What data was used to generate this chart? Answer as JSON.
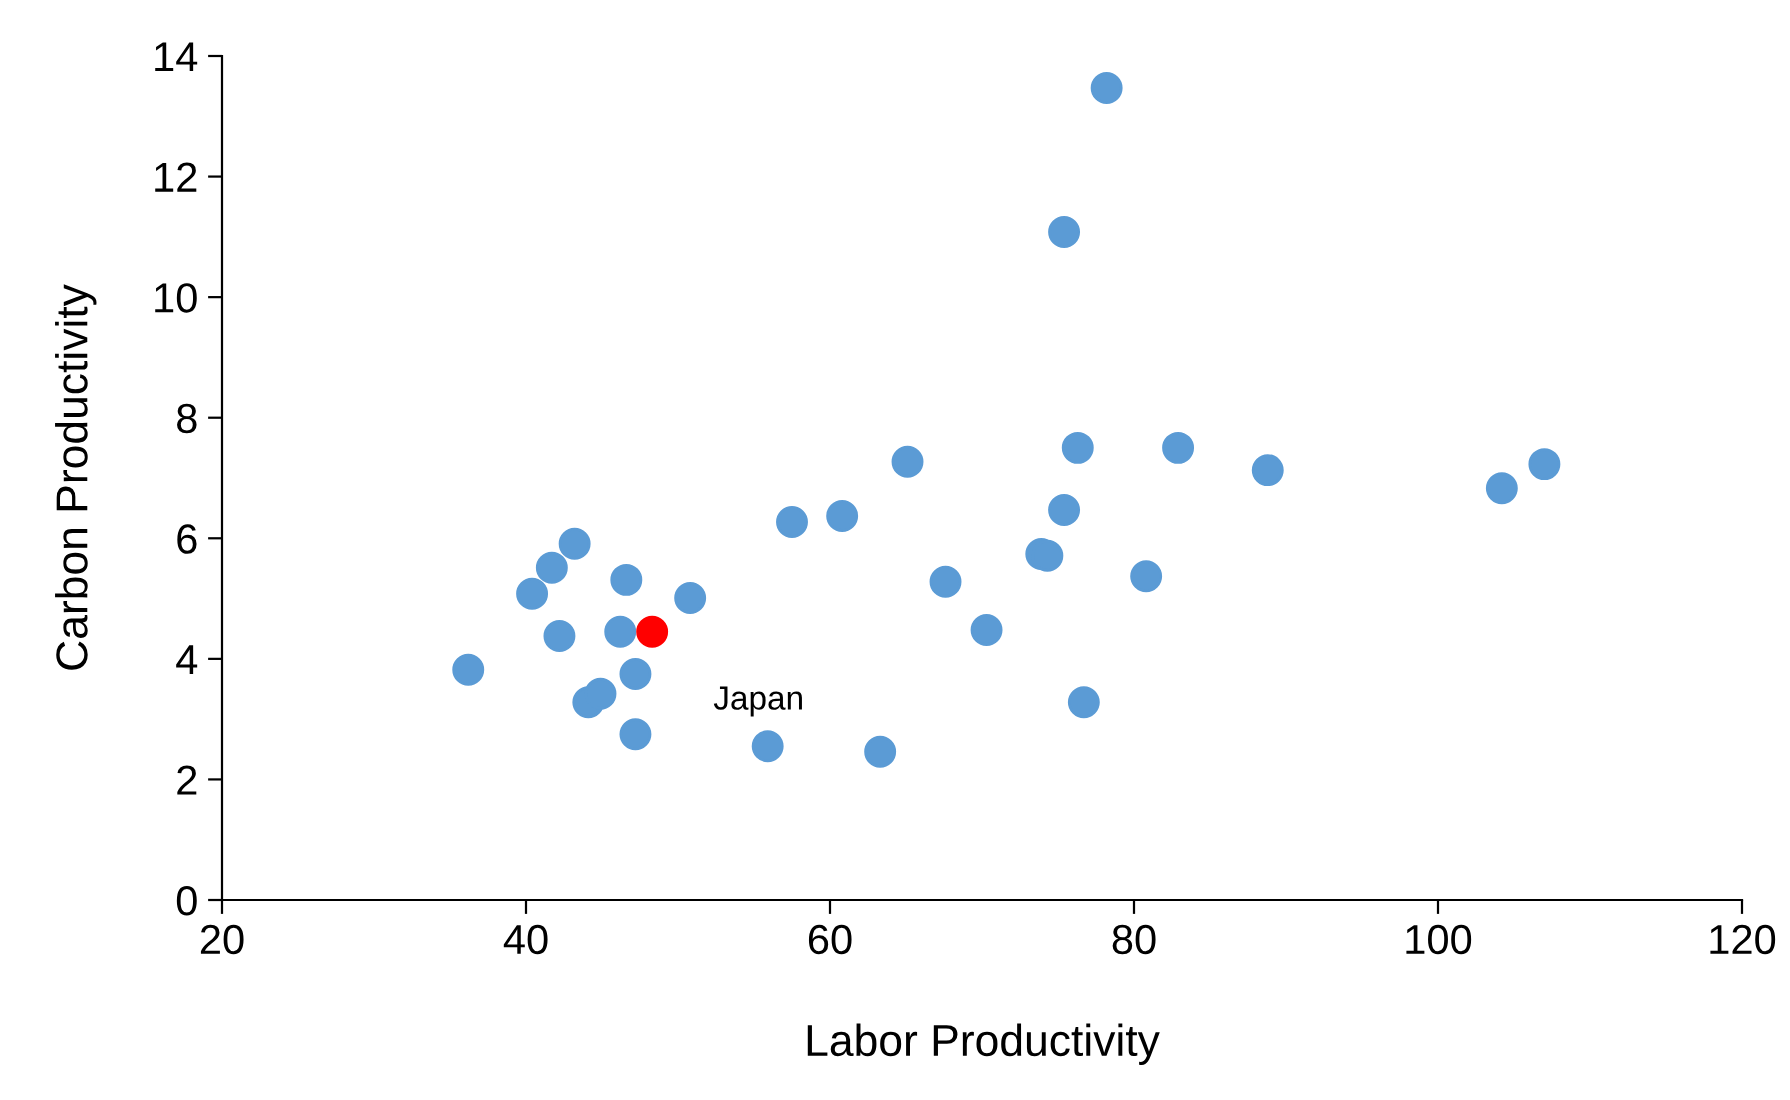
{
  "chart_data": {
    "type": "scatter",
    "xlabel": "Labor Productivity",
    "ylabel": "Carbon Productivity",
    "xlim": [
      20,
      120
    ],
    "xticks": [
      20,
      40,
      60,
      80,
      100,
      120
    ],
    "ylim": [
      0,
      14
    ],
    "yticks": [
      0,
      2,
      4,
      6,
      8,
      10,
      12,
      14
    ],
    "grid": false,
    "marker": "circle",
    "series": [
      {
        "color": "#5b9bd5",
        "x": [
          36.2,
          40.4,
          41.7,
          42.2,
          43.2,
          44.1,
          44.9,
          46.2,
          46.6,
          47.2,
          47.2,
          50.8,
          55.9,
          57.5,
          60.8,
          63.3,
          65.1,
          67.6,
          70.3,
          73.9,
          74.3,
          75.4,
          75.4,
          76.3,
          76.7,
          78.2,
          80.8,
          82.9,
          88.8,
          104.2,
          107.0
        ],
        "values": [
          3.82,
          5.08,
          5.51,
          4.38,
          5.91,
          3.28,
          3.42,
          4.45,
          5.31,
          3.75,
          2.75,
          5.01,
          2.55,
          6.27,
          6.37,
          2.46,
          7.27,
          5.28,
          4.48,
          5.74,
          5.71,
          6.47,
          11.08,
          7.5,
          3.28,
          13.47,
          5.37,
          7.5,
          7.13,
          6.83,
          7.23
        ]
      },
      {
        "color": "#ff0000",
        "x": [
          48.3
        ],
        "values": [
          4.45
        ]
      }
    ],
    "annotations": [
      {
        "text": "Japan",
        "x": 48.3,
        "y": 4.45
      }
    ]
  }
}
